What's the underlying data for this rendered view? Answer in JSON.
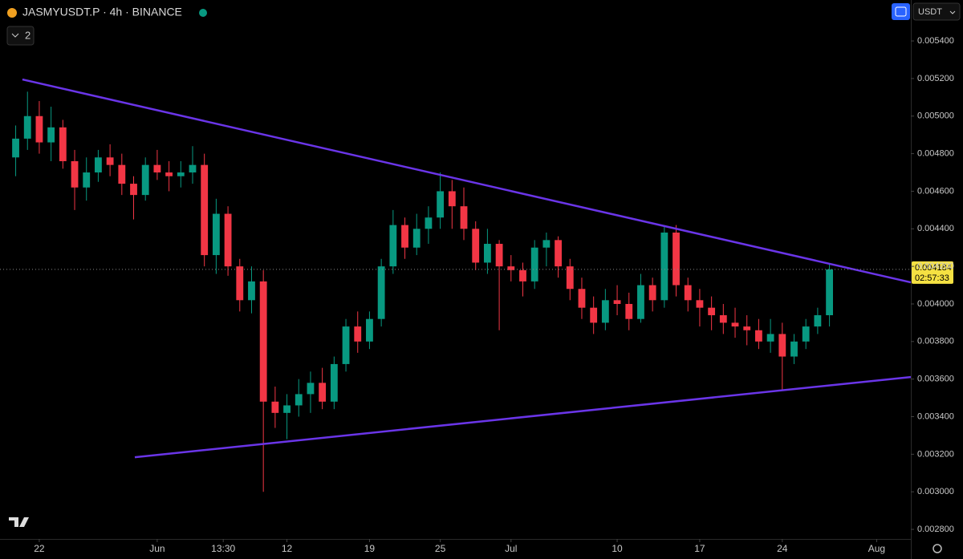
{
  "chart_data": {
    "type": "candlestick",
    "title": "JASMYUSDT.P · 4h · BINANCE",
    "indicator_count": "2",
    "currency": "USDT",
    "up_color": "#089981",
    "down_color": "#f23645",
    "candles": [
      [
        0.00478,
        0.00495,
        0.00468,
        0.00488
      ],
      [
        0.00488,
        0.00513,
        0.00482,
        0.005
      ],
      [
        0.005,
        0.00508,
        0.0048,
        0.00486
      ],
      [
        0.00486,
        0.00505,
        0.00476,
        0.00494
      ],
      [
        0.00494,
        0.00498,
        0.00472,
        0.00476
      ],
      [
        0.00476,
        0.00482,
        0.0045,
        0.00462
      ],
      [
        0.00462,
        0.00478,
        0.00455,
        0.0047
      ],
      [
        0.0047,
        0.00482,
        0.00465,
        0.00478
      ],
      [
        0.00478,
        0.00485,
        0.00468,
        0.00474
      ],
      [
        0.00474,
        0.0048,
        0.00458,
        0.00464
      ],
      [
        0.00464,
        0.00468,
        0.00445,
        0.00458
      ],
      [
        0.00458,
        0.00478,
        0.00455,
        0.00474
      ],
      [
        0.00474,
        0.00482,
        0.00466,
        0.0047
      ],
      [
        0.0047,
        0.00476,
        0.0046,
        0.00468
      ],
      [
        0.00468,
        0.00476,
        0.00462,
        0.0047
      ],
      [
        0.0047,
        0.00484,
        0.00464,
        0.00474
      ],
      [
        0.00474,
        0.0048,
        0.0042,
        0.00426
      ],
      [
        0.00426,
        0.00456,
        0.00416,
        0.00448
      ],
      [
        0.00448,
        0.00452,
        0.00415,
        0.0042
      ],
      [
        0.0042,
        0.00424,
        0.00396,
        0.00402
      ],
      [
        0.00402,
        0.0042,
        0.00395,
        0.00412
      ],
      [
        0.00412,
        0.00418,
        0.003,
        0.00348
      ],
      [
        0.00348,
        0.00356,
        0.00334,
        0.00342
      ],
      [
        0.00342,
        0.00352,
        0.00328,
        0.00346
      ],
      [
        0.00346,
        0.0036,
        0.0034,
        0.00352
      ],
      [
        0.00352,
        0.00364,
        0.00342,
        0.00358
      ],
      [
        0.00358,
        0.00366,
        0.00344,
        0.00348
      ],
      [
        0.00348,
        0.00372,
        0.00344,
        0.00368
      ],
      [
        0.00368,
        0.00392,
        0.00364,
        0.00388
      ],
      [
        0.00388,
        0.00396,
        0.00374,
        0.0038
      ],
      [
        0.0038,
        0.00396,
        0.00376,
        0.00392
      ],
      [
        0.00392,
        0.00424,
        0.00388,
        0.0042
      ],
      [
        0.0042,
        0.0045,
        0.00416,
        0.00442
      ],
      [
        0.00442,
        0.00446,
        0.00424,
        0.0043
      ],
      [
        0.0043,
        0.00448,
        0.00426,
        0.0044
      ],
      [
        0.0044,
        0.00452,
        0.00432,
        0.00446
      ],
      [
        0.00446,
        0.0047,
        0.0044,
        0.0046
      ],
      [
        0.0046,
        0.00466,
        0.0044,
        0.00452
      ],
      [
        0.00452,
        0.00462,
        0.00434,
        0.0044
      ],
      [
        0.0044,
        0.00444,
        0.00418,
        0.00422
      ],
      [
        0.00422,
        0.0044,
        0.00416,
        0.00432
      ],
      [
        0.00432,
        0.00434,
        0.00386,
        0.0042
      ],
      [
        0.0042,
        0.00426,
        0.00412,
        0.00418
      ],
      [
        0.00418,
        0.00422,
        0.00404,
        0.00412
      ],
      [
        0.00412,
        0.00434,
        0.00408,
        0.0043
      ],
      [
        0.0043,
        0.00438,
        0.0042,
        0.00434
      ],
      [
        0.00434,
        0.00436,
        0.00414,
        0.0042
      ],
      [
        0.0042,
        0.00424,
        0.00402,
        0.00408
      ],
      [
        0.00408,
        0.00414,
        0.00392,
        0.00398
      ],
      [
        0.00398,
        0.00404,
        0.00384,
        0.0039
      ],
      [
        0.0039,
        0.00408,
        0.00386,
        0.00402
      ],
      [
        0.00402,
        0.0041,
        0.00394,
        0.004
      ],
      [
        0.004,
        0.00406,
        0.00386,
        0.00392
      ],
      [
        0.00392,
        0.00416,
        0.0039,
        0.0041
      ],
      [
        0.0041,
        0.00414,
        0.00396,
        0.00402
      ],
      [
        0.00402,
        0.00442,
        0.00398,
        0.00438
      ],
      [
        0.00438,
        0.00442,
        0.00404,
        0.0041
      ],
      [
        0.0041,
        0.00414,
        0.00396,
        0.00402
      ],
      [
        0.00402,
        0.00408,
        0.00388,
        0.00398
      ],
      [
        0.00398,
        0.00404,
        0.00386,
        0.00394
      ],
      [
        0.00394,
        0.004,
        0.00384,
        0.0039
      ],
      [
        0.0039,
        0.00398,
        0.00382,
        0.00388
      ],
      [
        0.00388,
        0.00394,
        0.00378,
        0.00386
      ],
      [
        0.00386,
        0.00392,
        0.00376,
        0.0038
      ],
      [
        0.0038,
        0.00392,
        0.00374,
        0.00384
      ],
      [
        0.00384,
        0.0039,
        0.00354,
        0.00372
      ],
      [
        0.00372,
        0.00384,
        0.00368,
        0.0038
      ],
      [
        0.0038,
        0.00392,
        0.00376,
        0.00388
      ],
      [
        0.00388,
        0.00398,
        0.00384,
        0.00394
      ],
      [
        0.00394,
        0.00421,
        0.00388,
        0.004184
      ]
    ],
    "xlim": [
      -1.33,
      75.9
    ],
    "xticks": [
      {
        "value": 2,
        "label": "22"
      },
      {
        "value": 12,
        "label": "Jun"
      },
      {
        "value": 17.6,
        "label": "13:30"
      },
      {
        "value": 23,
        "label": "12"
      },
      {
        "value": 30,
        "label": "19"
      },
      {
        "value": 36,
        "label": "25"
      },
      {
        "value": 42,
        "label": "Jul"
      },
      {
        "value": 51,
        "label": "10"
      },
      {
        "value": 58,
        "label": "17"
      },
      {
        "value": 65,
        "label": "24"
      },
      {
        "value": 73,
        "label": "Aug"
      }
    ],
    "ylim": [
      0.002749,
      0.005618
    ],
    "yticks": [
      {
        "value": 0.0054,
        "label": "0.005400"
      },
      {
        "value": 0.0052,
        "label": "0.005200"
      },
      {
        "value": 0.005,
        "label": "0.005000"
      },
      {
        "value": 0.0048,
        "label": "0.004800"
      },
      {
        "value": 0.0046,
        "label": "0.004600"
      },
      {
        "value": 0.0044,
        "label": "0.004400"
      },
      {
        "value": 0.0042,
        "label": "0.004200"
      },
      {
        "value": 0.004,
        "label": "0.004000"
      },
      {
        "value": 0.0038,
        "label": "0.003800"
      },
      {
        "value": 0.0036,
        "label": "0.003600"
      },
      {
        "value": 0.0034,
        "label": "0.003400"
      },
      {
        "value": 0.0032,
        "label": "0.003200"
      },
      {
        "value": 0.003,
        "label": "0.003000"
      },
      {
        "value": 0.0028,
        "label": "0.002800"
      }
    ],
    "trendline_color": "#6a35e8",
    "trendlines": [
      {
        "start": [
          0.57,
          0.005195
        ],
        "end": [
          75.9,
          0.004115
        ]
      },
      {
        "start": [
          10.1,
          0.003184
        ],
        "end": [
          75.9,
          0.003611
        ]
      }
    ],
    "last_price": {
      "value": 0.004184,
      "countdown": "02:57:33"
    }
  }
}
